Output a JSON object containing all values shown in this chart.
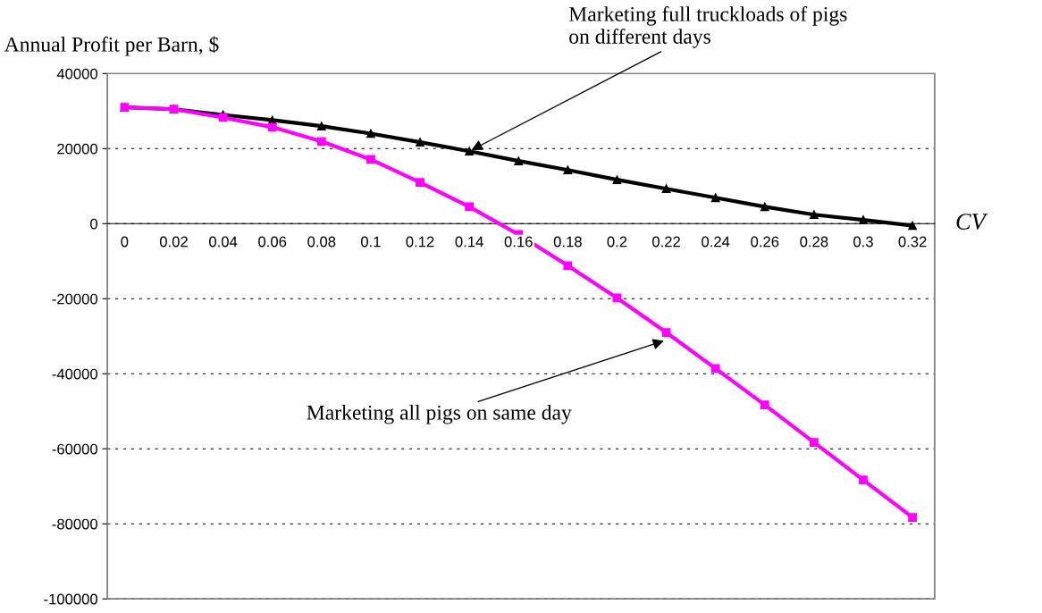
{
  "chart_data": {
    "type": "line",
    "ylabel": "Annual Profit per Barn, $",
    "xlabel": "CV",
    "categories": [
      "0",
      "0.02",
      "0.04",
      "0.06",
      "0.08",
      "0.1",
      "0.12",
      "0.14",
      "0.16",
      "0.18",
      "0.2",
      "0.22",
      "0.24",
      "0.26",
      "0.28",
      "0.3",
      "0.32"
    ],
    "series": [
      {
        "color": "#000000",
        "marker": "triangle",
        "values": [
          31000,
          30500,
          29000,
          27600,
          26000,
          24000,
          21700,
          19300,
          16700,
          14300,
          11700,
          9300,
          6900,
          4500,
          2400,
          1000,
          -500
        ]
      },
      {
        "color": "#ff00ff",
        "marker": "square",
        "values": [
          31000,
          30500,
          28300,
          25700,
          21900,
          17100,
          11000,
          4500,
          -2900,
          -11200,
          -19800,
          -29000,
          -38600,
          -48300,
          -58300,
          -68300,
          -78300
        ]
      }
    ],
    "ylim": [
      -100000,
      40000
    ],
    "yticks": [
      -100000,
      -80000,
      -60000,
      -40000,
      -20000,
      0,
      20000,
      40000
    ],
    "grid": "y",
    "line_style": "solid",
    "annotations": [
      {
        "text": "Marketing full truckloads of pigs\non different days",
        "x": "0.14",
        "y": 19300
      },
      {
        "text": "Marketing all pigs on same day",
        "x": "0.22",
        "y": -31000
      }
    ]
  }
}
